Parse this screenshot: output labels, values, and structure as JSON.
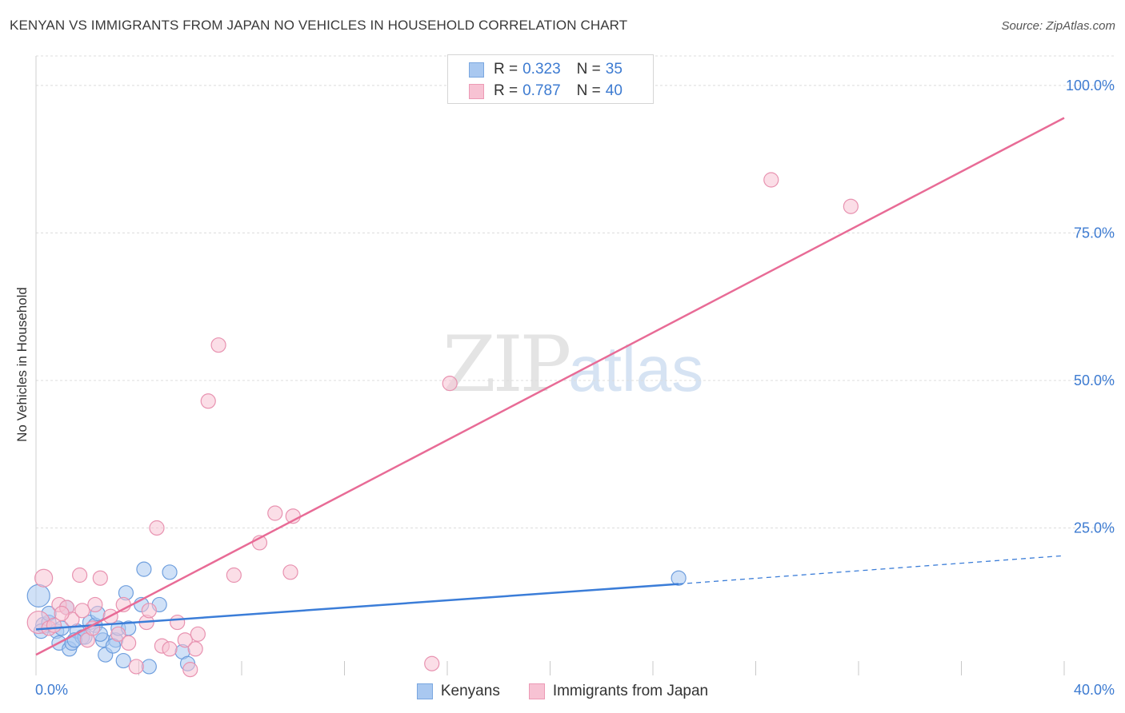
{
  "header": {
    "title": "KENYAN VS IMMIGRANTS FROM JAPAN NO VEHICLES IN HOUSEHOLD CORRELATION CHART",
    "source": "Source: ZipAtlas.com"
  },
  "watermark": {
    "zip": "ZIP",
    "atlas": "atlas"
  },
  "legend": {
    "rows": [
      {
        "r_label": "R =",
        "r_value": "0.323",
        "n_label": "N =",
        "n_value": "35",
        "color": "#a9c8f0",
        "border": "#7aa7e0"
      },
      {
        "r_label": "R =",
        "r_value": "0.787",
        "n_label": "N =",
        "n_value": "40",
        "color": "#f7c2d3",
        "border": "#ec9ab5"
      }
    ]
  },
  "bottom_legend": {
    "kenyans": "Kenyans",
    "japan": "Immigrants from Japan"
  },
  "chart_data": {
    "type": "scatter",
    "title": "KENYAN VS IMMIGRANTS FROM JAPAN NO VEHICLES IN HOUSEHOLD CORRELATION CHART",
    "xlabel": "",
    "ylabel": "No Vehicles in Household",
    "xlim": [
      0,
      40
    ],
    "ylim": [
      0,
      105
    ],
    "x_tick_labels": [
      "0.0%",
      "40.0%"
    ],
    "y_ticks": [
      25,
      50,
      75,
      100
    ],
    "y_tick_labels": [
      "25.0%",
      "50.0%",
      "75.0%",
      "100.0%"
    ],
    "colors": {
      "kenyans": "#3b7dd8",
      "japan": "#e86b96"
    },
    "series": [
      {
        "name": "Kenyans",
        "color": "#3b7dd8",
        "fill": "#a9c8f0",
        "points": [
          [
            0.1,
            13.5,
            14
          ],
          [
            0.3,
            8.5,
            10
          ],
          [
            0.5,
            9.0,
            9
          ],
          [
            0.8,
            7.5,
            9
          ],
          [
            0.9,
            5.5,
            9
          ],
          [
            1.2,
            11.5,
            9
          ],
          [
            1.3,
            4.5,
            9
          ],
          [
            1.4,
            5.5,
            9
          ],
          [
            1.6,
            7.5,
            9
          ],
          [
            1.8,
            6.5,
            9
          ],
          [
            2.1,
            9.0,
            9
          ],
          [
            2.3,
            8.5,
            9
          ],
          [
            2.4,
            10.5,
            9
          ],
          [
            2.6,
            6.0,
            9
          ],
          [
            2.7,
            3.5,
            9
          ],
          [
            3.1,
            6.0,
            9
          ],
          [
            3.2,
            8.0,
            9
          ],
          [
            3.4,
            2.5,
            9
          ],
          [
            3.5,
            14.0,
            9
          ],
          [
            3.6,
            8.0,
            9
          ],
          [
            4.1,
            12.0,
            9
          ],
          [
            4.2,
            18.0,
            9
          ],
          [
            4.4,
            1.5,
            9
          ],
          [
            4.8,
            12.0,
            9
          ],
          [
            5.2,
            17.5,
            9
          ],
          [
            5.7,
            4.0,
            9
          ],
          [
            5.9,
            2.0,
            9
          ],
          [
            25.0,
            16.5,
            9
          ],
          [
            0.5,
            10.5,
            9
          ],
          [
            1.0,
            8.0,
            9
          ],
          [
            1.9,
            6.5,
            9
          ],
          [
            2.5,
            7.0,
            9
          ],
          [
            0.2,
            7.5,
            9
          ],
          [
            1.5,
            6.0,
            9
          ],
          [
            3.0,
            5.0,
            9
          ]
        ],
        "trend": {
          "x0": 0,
          "y0": 7.8,
          "x1": 25.0,
          "y1": 15.5,
          "dash_x1": 40,
          "dash_y1": 20.3
        }
      },
      {
        "name": "Immigrants from Japan",
        "color": "#e86b96",
        "fill": "#f7c2d3",
        "points": [
          [
            0.1,
            9.0,
            14
          ],
          [
            0.3,
            16.5,
            11
          ],
          [
            0.5,
            8.0,
            9
          ],
          [
            0.7,
            8.5,
            9
          ],
          [
            0.9,
            12.0,
            9
          ],
          [
            1.2,
            11.5,
            9
          ],
          [
            1.4,
            9.5,
            9
          ],
          [
            1.7,
            17.0,
            9
          ],
          [
            1.8,
            11.0,
            9
          ],
          [
            2.0,
            6.0,
            9
          ],
          [
            2.3,
            12.0,
            9
          ],
          [
            2.5,
            16.5,
            9
          ],
          [
            2.9,
            10.0,
            9
          ],
          [
            3.2,
            7.0,
            9
          ],
          [
            3.4,
            12.0,
            9
          ],
          [
            3.6,
            5.5,
            9
          ],
          [
            3.9,
            1.5,
            9
          ],
          [
            4.3,
            9.0,
            9
          ],
          [
            4.4,
            11.0,
            9
          ],
          [
            4.7,
            25.0,
            9
          ],
          [
            4.9,
            5.0,
            9
          ],
          [
            5.2,
            4.5,
            9
          ],
          [
            5.5,
            9.0,
            9
          ],
          [
            5.8,
            6.0,
            9
          ],
          [
            6.0,
            1.0,
            9
          ],
          [
            6.2,
            4.5,
            9
          ],
          [
            6.3,
            7.0,
            9
          ],
          [
            6.7,
            46.5,
            9
          ],
          [
            7.1,
            56.0,
            9
          ],
          [
            7.7,
            17.0,
            9
          ],
          [
            8.7,
            22.5,
            9
          ],
          [
            9.3,
            27.5,
            9
          ],
          [
            9.9,
            17.5,
            9
          ],
          [
            10.0,
            27.0,
            9
          ],
          [
            15.4,
            2.0,
            9
          ],
          [
            16.1,
            49.5,
            9
          ],
          [
            28.6,
            84.0,
            9
          ],
          [
            31.7,
            79.5,
            9
          ],
          [
            1.0,
            10.5,
            9
          ],
          [
            2.2,
            8.0,
            9
          ]
        ],
        "trend": {
          "x0": 0,
          "y0": 3.5,
          "x1": 40,
          "y1": 94.5
        }
      }
    ]
  }
}
